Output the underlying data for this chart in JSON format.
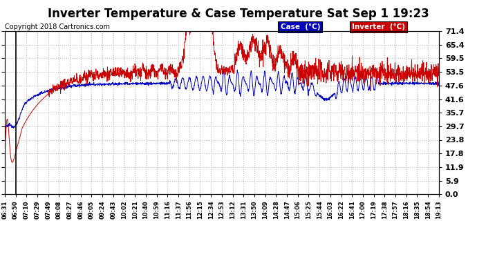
{
  "title": "Inverter Temperature & Case Temperature Sat Sep 1 19:23",
  "copyright": "Copyright 2018 Cartronics.com",
  "legend_labels": [
    "Case  (°C)",
    "Inverter  (°C)"
  ],
  "yticks": [
    0.0,
    5.9,
    11.9,
    17.8,
    23.8,
    29.7,
    35.7,
    41.6,
    47.6,
    53.5,
    59.5,
    65.4,
    71.4
  ],
  "ymin": 0.0,
  "ymax": 71.4,
  "xtick_labels": [
    "06:31",
    "06:50",
    "07:10",
    "07:29",
    "07:49",
    "08:08",
    "08:27",
    "08:46",
    "09:05",
    "09:24",
    "09:43",
    "10:02",
    "10:21",
    "10:40",
    "10:59",
    "11:16",
    "11:37",
    "11:56",
    "12:15",
    "12:34",
    "12:53",
    "13:12",
    "13:31",
    "13:50",
    "14:09",
    "14:28",
    "14:47",
    "15:06",
    "15:25",
    "15:44",
    "16:03",
    "16:22",
    "16:41",
    "17:00",
    "17:19",
    "17:38",
    "17:57",
    "18:16",
    "18:35",
    "18:54",
    "19:13"
  ],
  "bg_color": "#ffffff",
  "grid_color": "#bbbbbb",
  "title_fontsize": 12,
  "case_color": "#0000cc",
  "inverter_color": "#cc0000",
  "case_legend_bg": "#0000bb",
  "inverter_legend_bg": "#cc0000"
}
